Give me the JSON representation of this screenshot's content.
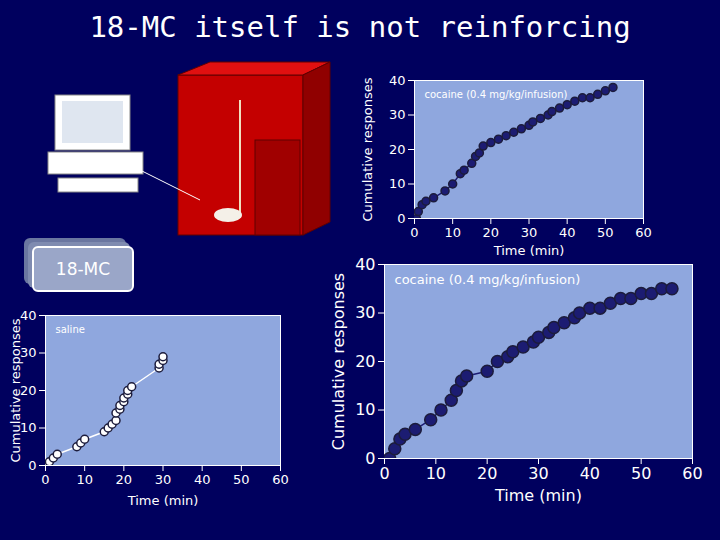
{
  "title": "18-MC itself is not reinforcing",
  "label": "18-MC",
  "chart_data": [
    {
      "type": "line",
      "annotation": "cocaine (0.4 mg/kg/infusion)",
      "x_label": "Time (min)",
      "y_label": "Cumulative responses",
      "x": [
        0.5,
        1,
        2,
        3,
        5,
        8,
        10,
        12,
        13,
        15,
        16,
        17,
        18,
        20,
        22,
        24,
        26,
        28,
        30,
        31,
        33,
        35,
        36,
        38,
        40,
        42,
        44,
        46,
        48,
        50,
        52
      ],
      "values": [
        0,
        2,
        4,
        5,
        6,
        8,
        10,
        13,
        14,
        16,
        18,
        19,
        21,
        22,
        23,
        24,
        25,
        26,
        27,
        28,
        29,
        30,
        31,
        32,
        33,
        34,
        35,
        35,
        36,
        37,
        38
      ],
      "xlim": [
        0,
        60
      ],
      "ylim": [
        0,
        40
      ],
      "xticks": [
        0,
        10,
        20,
        30,
        40,
        50,
        60
      ],
      "yticks": [
        0,
        10,
        20,
        30,
        40
      ],
      "color": "#1c1c72",
      "marker": "circle"
    },
    {
      "type": "line",
      "annotation": "saline",
      "x_label": "Time (min)",
      "y_label": "Cumulative responses",
      "x": [
        0,
        1,
        2,
        3,
        8,
        9,
        10,
        15,
        16,
        17,
        18,
        18,
        19,
        19,
        20,
        20,
        21,
        21,
        22,
        29,
        29,
        30,
        30
      ],
      "values": [
        0,
        1,
        2,
        3,
        5,
        6,
        7,
        9,
        10,
        11,
        12,
        14,
        15,
        16,
        17,
        18,
        19,
        20,
        21,
        26,
        27,
        28,
        29
      ],
      "xlim": [
        0,
        60
      ],
      "ylim": [
        0,
        40
      ],
      "xticks": [
        0,
        10,
        20,
        30,
        40,
        50,
        60
      ],
      "yticks": [
        0,
        10,
        20,
        30,
        40
      ],
      "color": "#ffffff",
      "marker": "circle"
    },
    {
      "type": "line",
      "annotation": "cocaine (0.4 mg/kg/infusion)",
      "x_label": "Time (min)",
      "y_label": "Cumulative responses",
      "x": [
        1,
        2,
        3,
        4,
        6,
        9,
        11,
        13,
        14,
        15,
        16,
        20,
        22,
        24,
        25,
        27,
        29,
        30,
        32,
        33,
        35,
        37,
        38,
        40,
        42,
        44,
        46,
        48,
        50,
        52,
        54,
        56
      ],
      "values": [
        0,
        2,
        4,
        5,
        6,
        8,
        10,
        12,
        14,
        16,
        17,
        18,
        20,
        21,
        22,
        23,
        24,
        25,
        26,
        27,
        28,
        29,
        30,
        31,
        31,
        32,
        33,
        33,
        34,
        34,
        35,
        35
      ],
      "xlim": [
        0,
        60
      ],
      "ylim": [
        0,
        40
      ],
      "xticks": [
        0,
        10,
        20,
        30,
        40,
        50,
        60
      ],
      "yticks": [
        0,
        10,
        20,
        30,
        40
      ],
      "color": "#1c1c72",
      "marker": "circle"
    }
  ]
}
